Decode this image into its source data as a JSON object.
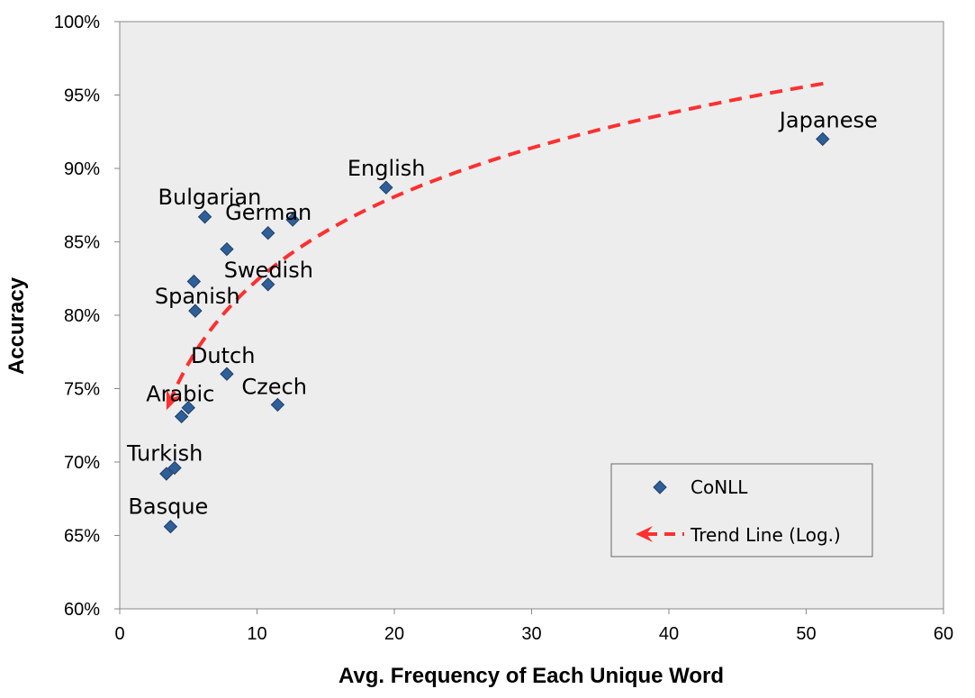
{
  "chart_data": {
    "type": "scatter",
    "title": "",
    "xlabel": "Avg. Frequency of Each Unique Word",
    "ylabel": "Accuracy",
    "xlim": [
      0,
      60
    ],
    "ylim": [
      60,
      100
    ],
    "x_ticks": [
      0,
      10,
      20,
      30,
      40,
      50,
      60
    ],
    "x_tick_labels": [
      "0",
      "10",
      "20",
      "30",
      "40",
      "50",
      "60"
    ],
    "y_ticks": [
      60,
      65,
      70,
      75,
      80,
      85,
      90,
      95,
      100
    ],
    "y_tick_labels": [
      "60%",
      "65%",
      "70%",
      "75%",
      "80%",
      "85%",
      "90%",
      "95%",
      "100%"
    ],
    "grid": false,
    "legend_position": "bottom-right",
    "series": [
      {
        "name": "CoNLL",
        "color": "#2f5f98",
        "marker": "diamond",
        "points": [
          {
            "x": 51.2,
            "y": 92.0
          },
          {
            "x": 19.4,
            "y": 88.7
          },
          {
            "x": 6.2,
            "y": 86.7
          },
          {
            "x": 12.6,
            "y": 86.5
          },
          {
            "x": 10.8,
            "y": 85.6
          },
          {
            "x": 7.8,
            "y": 84.5
          },
          {
            "x": 5.4,
            "y": 82.3
          },
          {
            "x": 10.8,
            "y": 82.1
          },
          {
            "x": 5.5,
            "y": 80.3
          },
          {
            "x": 7.8,
            "y": 76.0
          },
          {
            "x": 11.5,
            "y": 73.9
          },
          {
            "x": 5.0,
            "y": 73.7
          },
          {
            "x": 4.5,
            "y": 73.1
          },
          {
            "x": 4.0,
            "y": 69.6
          },
          {
            "x": 3.4,
            "y": 69.2
          },
          {
            "x": 3.7,
            "y": 65.6
          }
        ]
      },
      {
        "name": "Trend Line (Log.)",
        "color": "#ff3030",
        "style": "dashed-arrow",
        "type": "log-trend",
        "a": 63.5,
        "b": 8.2,
        "x_range": [
          3.4,
          51.5
        ]
      }
    ],
    "annotations": [
      {
        "text": "Japanese",
        "x": 51.2,
        "y": 92.0,
        "dx": -48,
        "dy": -13
      },
      {
        "text": "English",
        "x": 19.4,
        "y": 88.7,
        "dx": -43,
        "dy": -13
      },
      {
        "text": "Bulgarian",
        "x": 6.2,
        "y": 86.7,
        "dx": -52,
        "dy": -14
      },
      {
        "text": "German",
        "x": 12.6,
        "y": 86.5,
        "dx": -75,
        "dy": 0
      },
      {
        "text": "Swedish",
        "x": 10.8,
        "y": 82.1,
        "dx": -49,
        "dy": -8
      },
      {
        "text": "Spanish",
        "x": 5.5,
        "y": 80.3,
        "dx": -45,
        "dy": -8
      },
      {
        "text": "Dutch",
        "x": 7.8,
        "y": 76.0,
        "dx": -40,
        "dy": -12
      },
      {
        "text": "Czech",
        "x": 11.5,
        "y": 73.9,
        "dx": -40,
        "dy": -12
      },
      {
        "text": "Arabic",
        "x": 5.0,
        "y": 73.7,
        "dx": -47,
        "dy": -7
      },
      {
        "text": "Turkish",
        "x": 4.0,
        "y": 69.6,
        "dx": -53,
        "dy": -8
      },
      {
        "text": "Basque",
        "x": 3.7,
        "y": 65.6,
        "dx": -47,
        "dy": -14
      }
    ]
  }
}
